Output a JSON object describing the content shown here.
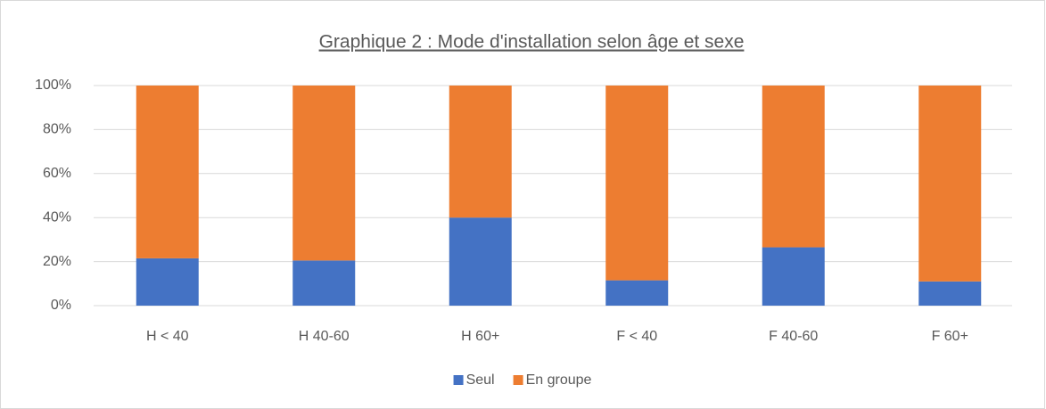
{
  "chart_data": {
    "type": "stacked_bar",
    "title": "Graphique 2 : Mode d'installation selon âge et sexe",
    "categories": [
      "H < 40",
      "H 40-60",
      "H 60+",
      "F < 40",
      "F 40-60",
      "F 60+"
    ],
    "series": [
      {
        "name": "Seul",
        "color": "#4472c4",
        "values": [
          21.5,
          20.5,
          40,
          11.5,
          26.5,
          11
        ]
      },
      {
        "name": "En groupe",
        "color": "#ed7d31",
        "values": [
          78.5,
          79.5,
          60,
          88.5,
          73.5,
          89
        ]
      }
    ],
    "ylim": [
      0,
      100
    ],
    "yticks": [
      {
        "value": 0,
        "label": "0%"
      },
      {
        "value": 20,
        "label": "20%"
      },
      {
        "value": 40,
        "label": "40%"
      },
      {
        "value": 60,
        "label": "60%"
      },
      {
        "value": 80,
        "label": "80%"
      },
      {
        "value": 100,
        "label": "100%"
      }
    ],
    "grid": true,
    "legend": "bottom"
  }
}
